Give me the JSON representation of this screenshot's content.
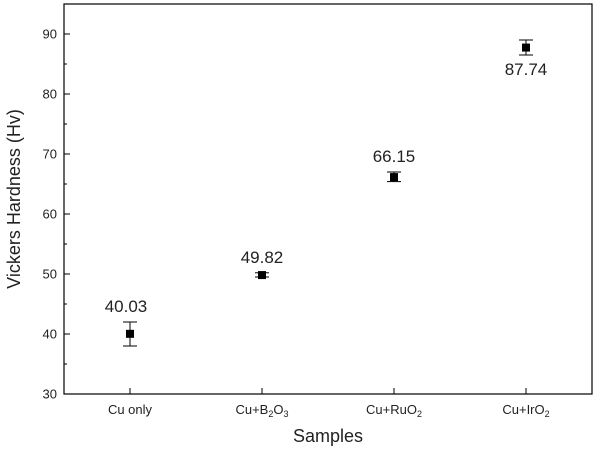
{
  "chart_data": {
    "type": "scatter",
    "categories": [
      {
        "plain": "Cu only",
        "base": "Cu only",
        "sub": "",
        "tail": ""
      },
      {
        "plain": "Cu+B2O3",
        "base": "Cu+B",
        "sub": "2",
        "tail": "O",
        "sub2": "3"
      },
      {
        "plain": "Cu+RuO2",
        "base": "Cu+RuO",
        "sub": "2",
        "tail": ""
      },
      {
        "plain": "Cu+IrO2",
        "base": "Cu+IrO",
        "sub": "2",
        "tail": ""
      }
    ],
    "values": [
      40.03,
      49.82,
      66.15,
      87.74
    ],
    "data_labels": [
      "40.03",
      "49.82",
      "66.15",
      "87.74"
    ],
    "error_low": [
      38.0,
      49.5,
      65.4,
      86.5
    ],
    "error_high": [
      42.0,
      50.2,
      67.0,
      89.0
    ],
    "xlabel": "Samples",
    "ylabel": "Vickers Hardness (Hv)",
    "ylim": [
      30,
      95
    ],
    "yticks": [
      30,
      40,
      50,
      60,
      70,
      80,
      90
    ],
    "grid": false,
    "marker_color": "#000000"
  }
}
